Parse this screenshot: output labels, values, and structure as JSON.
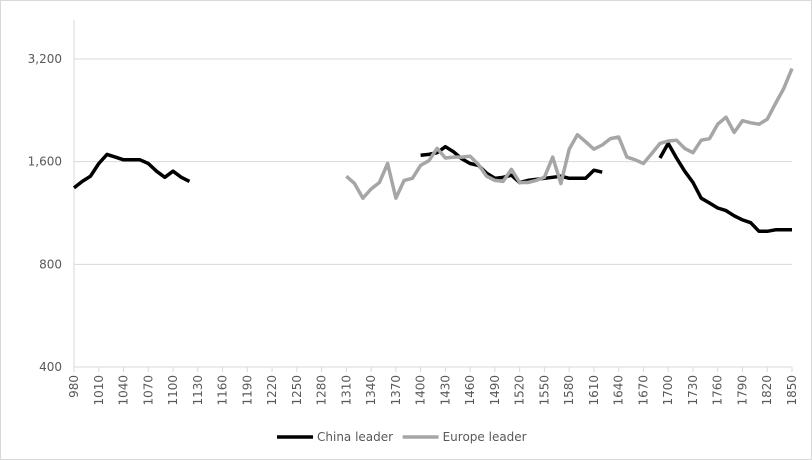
{
  "chart_data": {
    "type": "line",
    "x": [
      980,
      990,
      1000,
      1010,
      1020,
      1030,
      1040,
      1050,
      1060,
      1070,
      1080,
      1090,
      1100,
      1110,
      1120,
      1130,
      1140,
      1150,
      1160,
      1170,
      1180,
      1190,
      1200,
      1210,
      1220,
      1230,
      1240,
      1250,
      1260,
      1270,
      1280,
      1290,
      1300,
      1310,
      1320,
      1330,
      1340,
      1350,
      1360,
      1370,
      1380,
      1390,
      1400,
      1410,
      1420,
      1430,
      1440,
      1450,
      1460,
      1470,
      1480,
      1490,
      1500,
      1510,
      1520,
      1530,
      1540,
      1550,
      1560,
      1570,
      1580,
      1590,
      1600,
      1610,
      1620,
      1630,
      1640,
      1650,
      1660,
      1670,
      1680,
      1690,
      1700,
      1710,
      1720,
      1730,
      1740,
      1750,
      1760,
      1770,
      1780,
      1790,
      1800,
      1810,
      1820,
      1830,
      1840,
      1850
    ],
    "series": [
      {
        "name": "China leader",
        "color": "#000000",
        "values": [
          1340,
          1400,
          1450,
          1580,
          1680,
          1650,
          1620,
          1620,
          1620,
          1580,
          1500,
          1440,
          1500,
          1440,
          1400,
          null,
          null,
          null,
          null,
          null,
          null,
          null,
          null,
          null,
          null,
          null,
          null,
          null,
          null,
          null,
          null,
          null,
          null,
          null,
          null,
          null,
          null,
          null,
          null,
          null,
          null,
          null,
          1670,
          1680,
          1700,
          1770,
          1710,
          1630,
          1580,
          1560,
          1480,
          1430,
          1440,
          1460,
          1390,
          1410,
          1420,
          1430,
          1440,
          1450,
          1430,
          1430,
          1430,
          1510,
          1490,
          null,
          null,
          null,
          null,
          null,
          null,
          1640,
          1810,
          1640,
          1500,
          1390,
          1250,
          1210,
          1170,
          1150,
          1110,
          1080,
          1060,
          1000,
          1000,
          1010,
          1010,
          1010
        ]
      },
      {
        "name": "Europe leader",
        "color": "#a6a6a6",
        "values": [
          null,
          null,
          null,
          null,
          null,
          null,
          null,
          null,
          null,
          null,
          null,
          null,
          null,
          null,
          null,
          null,
          null,
          null,
          null,
          null,
          null,
          null,
          null,
          null,
          null,
          null,
          null,
          null,
          null,
          null,
          null,
          null,
          null,
          1450,
          1380,
          1250,
          1330,
          1390,
          1580,
          1250,
          1410,
          1430,
          1560,
          1610,
          1750,
          1640,
          1650,
          1650,
          1660,
          1570,
          1450,
          1410,
          1400,
          1520,
          1390,
          1390,
          1410,
          1440,
          1650,
          1380,
          1740,
          1920,
          1830,
          1740,
          1790,
          1870,
          1890,
          1650,
          1620,
          1580,
          1690,
          1810,
          1840,
          1850,
          1750,
          1700,
          1850,
          1870,
          2060,
          2160,
          1950,
          2110,
          2080,
          2060,
          2130,
          2370,
          2620,
          3000
        ]
      }
    ],
    "xlim": [
      980,
      1850
    ],
    "xticks": [
      980,
      1010,
      1040,
      1070,
      1100,
      1130,
      1160,
      1190,
      1220,
      1250,
      1280,
      1310,
      1340,
      1370,
      1400,
      1430,
      1460,
      1490,
      1520,
      1550,
      1580,
      1610,
      1640,
      1670,
      1700,
      1730,
      1760,
      1790,
      1820,
      1850
    ],
    "ylim": [
      400,
      3200
    ],
    "yscale": "log",
    "yticks": [
      400,
      800,
      {
        "value": 1600,
        "label": "1,600"
      },
      {
        "value": 3200,
        "label": "3,200"
      }
    ],
    "grid": true,
    "legend": "bottom"
  }
}
